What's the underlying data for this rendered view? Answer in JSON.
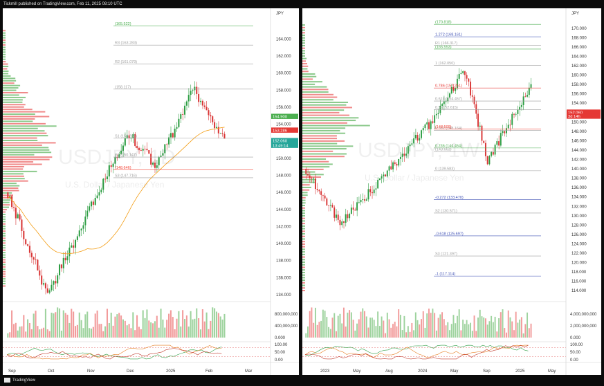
{
  "header": {
    "publisher_text": "Tickmill published on TradingView.com, Feb 11, 2025 08:10 UTC"
  },
  "footer": {
    "brand": "TradingView"
  },
  "left_chart": {
    "symbol_watermark": "USDJPY, 1D",
    "description_watermark": "U.S. Dollar / Japanese Yen",
    "currency": "JPY",
    "price_axis": [
      "164.000",
      "162.000",
      "160.000",
      "158.000",
      "156.000",
      "154.000",
      "152.000",
      "150.000",
      "148.000",
      "146.000",
      "144.000",
      "142.000",
      "140.000",
      "138.000",
      "136.000",
      "134.000"
    ],
    "levels": [
      {
        "label": "(165.522)",
        "value": 165.522,
        "color": "#4caf50"
      },
      {
        "label": "R3 (163.283)",
        "value": 163.283,
        "color": "#9e9e9e"
      },
      {
        "label": "R2 (161.079)",
        "value": 161.079,
        "color": "#9e9e9e"
      },
      {
        "label": "(158.117)",
        "value": 158.117,
        "color": "#9e9e9e"
      },
      {
        "label": "S1 (152.351)",
        "value": 152.351,
        "color": "#9e9e9e"
      },
      {
        "label": "S2 (150.147)",
        "value": 150.147,
        "color": "#9e9e9e"
      },
      {
        "label": "S3 (147.716)",
        "value": 147.716,
        "color": "#9e9e9e"
      },
      {
        "label": "(148.646)",
        "value": 148.646,
        "color": "#f44336"
      }
    ],
    "tags": [
      {
        "label": "154.900",
        "color": "#4caf50",
        "value": 154.9
      },
      {
        "label": "153.286",
        "color": "#e53935",
        "value": 153.286
      },
      {
        "label": "152.060",
        "color": "#26a69a",
        "value": 152.06
      },
      {
        "label": "13:49:14",
        "color": "#26a69a",
        "value": 151.5
      }
    ],
    "volume_axis": [
      "800,000,000",
      "400,000,000",
      "0.000"
    ],
    "osc_axis": [
      "100.00",
      "50.00",
      "0.00"
    ],
    "time_axis": [
      "Sep",
      "Oct",
      "Nov",
      "Dec",
      "2025",
      "Feb",
      "Mar"
    ]
  },
  "right_chart": {
    "symbol_watermark": "USDJPY, 1W",
    "description_watermark": "U.S. Dollar / Japanese Yen",
    "currency": "JPY",
    "price_axis": [
      "170.000",
      "168.000",
      "166.000",
      "164.000",
      "162.000",
      "160.000",
      "158.000",
      "156.000",
      "154.000",
      "152.000",
      "150.000",
      "148.000",
      "146.000",
      "144.000",
      "142.000",
      "140.000",
      "138.000",
      "136.000",
      "134.000",
      "132.000",
      "130.000",
      "128.000",
      "126.000",
      "124.000",
      "122.000",
      "120.000",
      "118.000",
      "116.000",
      "114.000"
    ],
    "levels": [
      {
        "label": "(170.818)",
        "value": 170.818,
        "color": "#4caf50"
      },
      {
        "label": "1.272 (168.161)",
        "value": 168.161,
        "color": "#3f51b5"
      },
      {
        "label": "R1 (166.317)",
        "value": 166.317,
        "color": "#9e9e9e"
      },
      {
        "label": "(165.553)",
        "value": 165.553,
        "color": "#4caf50"
      },
      {
        "label": "1 (162.050)",
        "value": 162.05,
        "color": "#9e9e9e"
      },
      {
        "label": "0.786 (157.251)",
        "value": 157.251,
        "color": "#e53935"
      },
      {
        "label": "0.618 (154.457)",
        "value": 154.457,
        "color": "#9e9e9e"
      },
      {
        "label": "0.5 (152.615)",
        "value": 152.615,
        "color": "#9e9e9e"
      },
      {
        "label": "0.382 (148.164)",
        "value": 148.164,
        "color": "#9e9e9e"
      },
      {
        "label": "(148.509)",
        "value": 148.509,
        "color": "#f44336"
      },
      {
        "label": "0.236 (144.454)",
        "value": 144.454,
        "color": "#4caf50"
      },
      {
        "label": "(143.663)",
        "value": 143.663,
        "color": "#9e9e9e"
      },
      {
        "label": "0 (139.583)",
        "value": 139.583,
        "color": "#9e9e9e"
      },
      {
        "label": "-0.272 (133.470)",
        "value": 133.47,
        "color": "#3f51b5"
      },
      {
        "label": "S2 (130.571)",
        "value": 130.571,
        "color": "#9e9e9e"
      },
      {
        "label": "-0.618 (125.697)",
        "value": 125.697,
        "color": "#3f51b5"
      },
      {
        "label": "S3 (121.397)",
        "value": 121.397,
        "color": "#9e9e9e"
      },
      {
        "label": "-1 (117.114)",
        "value": 117.114,
        "color": "#3f51b5"
      }
    ],
    "tags": [
      {
        "label": "152.060",
        "color": "#e53935",
        "value": 152.06
      },
      {
        "label": "3d 14h",
        "color": "#e53935",
        "value": 151.2
      }
    ],
    "volume_axis": [
      "4,000,000,000",
      "2,000,000,000",
      "0.000"
    ],
    "osc_axis": [
      "100.00",
      "50.00",
      "0.00"
    ],
    "time_axis": [
      "2023",
      "May",
      "Aug",
      "2024",
      "May",
      "Sep",
      "2025",
      "May"
    ]
  }
}
